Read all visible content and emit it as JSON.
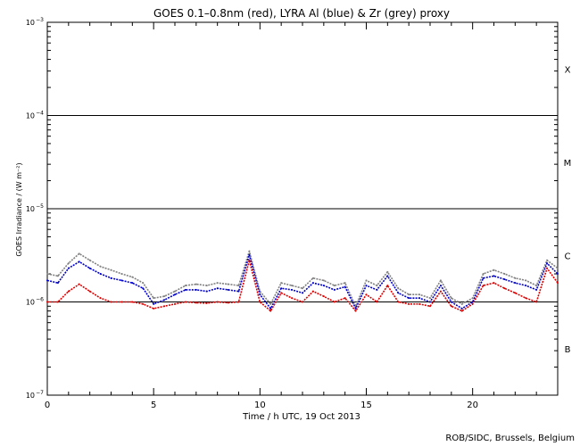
{
  "chart_data": {
    "type": "line",
    "title": "GOES 0.1–0.8nm (red), LYRA Al (blue) & Zr (grey) proxy",
    "xlabel": "Time / h UTC, 19 Oct 2013",
    "ylabel": "GOES Irradiance / (W m⁻²)",
    "footer": "ROB/SIDC, Brussels, Belgium",
    "xlim": [
      0,
      24
    ],
    "ylim": [
      1e-07,
      0.001
    ],
    "yscale": "log",
    "x_ticks": [
      0,
      5,
      10,
      15,
      20
    ],
    "x_tick_labels": [
      "0",
      "5",
      "10",
      "15",
      "20"
    ],
    "y_ticks": [
      {
        "base": "10",
        "exp": "−7",
        "value": 1e-07
      },
      {
        "base": "10",
        "exp": "−6",
        "value": 1e-06
      },
      {
        "base": "10",
        "exp": "−5",
        "value": 1e-05
      },
      {
        "base": "10",
        "exp": "−4",
        "value": 0.0001
      },
      {
        "base": "10",
        "exp": "−3",
        "value": 0.001
      }
    ],
    "reference_lines": [
      1e-06,
      1e-05,
      0.0001
    ],
    "flare_classes": [
      {
        "label": "B",
        "value": 3.16e-07
      },
      {
        "label": "C",
        "value": 3.16e-06
      },
      {
        "label": "M",
        "value": 3.16e-05
      },
      {
        "label": "X",
        "value": 0.000316
      }
    ],
    "series": [
      {
        "color": "#808080",
        "x": [
          0,
          0.5,
          1,
          1.5,
          2,
          2.5,
          3,
          3.5,
          4,
          4.5,
          5,
          5.5,
          6,
          6.5,
          7,
          7.5,
          8,
          8.5,
          9,
          9.5,
          10,
          10.5,
          11,
          11.5,
          12,
          12.5,
          13,
          13.5,
          14,
          14.5,
          15,
          15.5,
          16,
          16.5,
          17,
          17.5,
          18,
          18.5,
          19,
          19.5,
          20,
          20.5,
          21,
          21.5,
          22,
          22.5,
          23,
          23.5,
          24
        ],
        "values": [
          2e-06,
          1.9e-06,
          2.6e-06,
          3.3e-06,
          2.8e-06,
          2.4e-06,
          2.2e-06,
          2e-06,
          1.85e-06,
          1.6e-06,
          1.1e-06,
          1.15e-06,
          1.3e-06,
          1.5e-06,
          1.55e-06,
          1.5e-06,
          1.6e-06,
          1.55e-06,
          1.5e-06,
          3.5e-06,
          1.3e-06,
          9.5e-07,
          1.6e-06,
          1.5e-06,
          1.4e-06,
          1.8e-06,
          1.7e-06,
          1.5e-06,
          1.6e-06,
          9e-07,
          1.7e-06,
          1.5e-06,
          2.1e-06,
          1.4e-06,
          1.2e-06,
          1.2e-06,
          1.1e-06,
          1.7e-06,
          1.1e-06,
          9.5e-07,
          1.1e-06,
          2e-06,
          2.2e-06,
          2e-06,
          1.8e-06,
          1.7e-06,
          1.5e-06,
          2.8e-06,
          2.3e-06
        ]
      },
      {
        "color": "#0000c8",
        "x": [
          0,
          0.5,
          1,
          1.5,
          2,
          2.5,
          3,
          3.5,
          4,
          4.5,
          5,
          5.5,
          6,
          6.5,
          7,
          7.5,
          8,
          8.5,
          9,
          9.5,
          10,
          10.5,
          11,
          11.5,
          12,
          12.5,
          13,
          13.5,
          14,
          14.5,
          15,
          15.5,
          16,
          16.5,
          17,
          17.5,
          18,
          18.5,
          19,
          19.5,
          20,
          20.5,
          21,
          21.5,
          22,
          22.5,
          23,
          23.5,
          24
        ],
        "values": [
          1.7e-06,
          1.6e-06,
          2.3e-06,
          2.7e-06,
          2.3e-06,
          2e-06,
          1.8e-06,
          1.7e-06,
          1.6e-06,
          1.4e-06,
          9.5e-07,
          1.05e-06,
          1.2e-06,
          1.35e-06,
          1.35e-06,
          1.3e-06,
          1.4e-06,
          1.35e-06,
          1.3e-06,
          3.2e-06,
          1.2e-06,
          8.5e-07,
          1.4e-06,
          1.35e-06,
          1.25e-06,
          1.6e-06,
          1.5e-06,
          1.35e-06,
          1.45e-06,
          8.5e-07,
          1.5e-06,
          1.35e-06,
          1.9e-06,
          1.25e-06,
          1.1e-06,
          1.1e-06,
          1e-06,
          1.5e-06,
          1e-06,
          8.5e-07,
          1e-06,
          1.8e-06,
          1.9e-06,
          1.75e-06,
          1.6e-06,
          1.5e-06,
          1.35e-06,
          2.6e-06,
          2e-06
        ]
      },
      {
        "color": "#dc0000",
        "x": [
          0,
          0.5,
          1,
          1.5,
          2,
          2.5,
          3,
          3.5,
          4,
          4.5,
          5,
          5.5,
          6,
          6.5,
          7,
          7.5,
          8,
          8.5,
          9,
          9.5,
          10,
          10.5,
          11,
          11.5,
          12,
          12.5,
          13,
          13.5,
          14,
          14.5,
          15,
          15.5,
          16,
          16.5,
          17,
          17.5,
          18,
          18.5,
          19,
          19.5,
          20,
          20.5,
          21,
          21.5,
          22,
          22.5,
          23,
          23.5,
          24
        ],
        "values": [
          1e-06,
          1e-06,
          1.3e-06,
          1.55e-06,
          1.3e-06,
          1.1e-06,
          1e-06,
          1e-06,
          1e-06,
          9.5e-07,
          8.5e-07,
          9e-07,
          9.5e-07,
          1e-06,
          9.8e-07,
          9.7e-07,
          1e-06,
          9.8e-07,
          1e-06,
          2.8e-06,
          1e-06,
          8e-07,
          1.25e-06,
          1.1e-06,
          1e-06,
          1.3e-06,
          1.15e-06,
          1e-06,
          1.1e-06,
          8e-07,
          1.2e-06,
          1e-06,
          1.5e-06,
          1e-06,
          9.5e-07,
          9.5e-07,
          9e-07,
          1.3e-06,
          9e-07,
          8e-07,
          9.5e-07,
          1.5e-06,
          1.6e-06,
          1.4e-06,
          1.25e-06,
          1.1e-06,
          1e-06,
          2.3e-06,
          1.6e-06
        ]
      }
    ],
    "grid": false,
    "legend": "none"
  }
}
